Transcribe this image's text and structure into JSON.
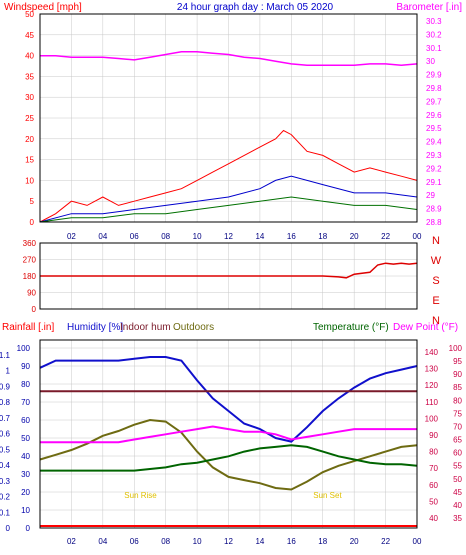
{
  "colors": {
    "background": "#ffffff",
    "frame": "#000000",
    "grid": "#c8c8c8",
    "wind_red": "#ff0000",
    "wind_blue": "#0000cc",
    "wind_green": "#007000",
    "barometer": "#ff00ff",
    "direction": "#dd0000",
    "humidity": "#1010cc",
    "indoor_hum": "#7a1a2a",
    "outdoor": "#6e6b12",
    "temperature": "#006400",
    "dewpoint": "#ff00ff",
    "rainfall": "#ff0000",
    "sun_label": "#e0c000",
    "left_axis2": "#0000aa",
    "right_axis2": "#cc0044"
  },
  "chart_data": [
    {
      "type": "line",
      "title": "24 hour graph day : March 05 2020",
      "left_axis_title": "Windspeed [mph]",
      "right_axis_title": "Barometer [.in]",
      "x_ticks": [
        "02",
        "04",
        "06",
        "08",
        "10",
        "12",
        "14",
        "16",
        "18",
        "20",
        "22",
        "00"
      ],
      "x_range": [
        0,
        24
      ],
      "left_ticks": [
        "0",
        "5",
        "10",
        "15",
        "20",
        "25",
        "30",
        "35",
        "40",
        "45",
        "50"
      ],
      "left_range": [
        0,
        50
      ],
      "right_ticks": [
        "28.8",
        "28.9",
        "29",
        "29.1",
        "29.2",
        "29.3",
        "29.4",
        "29.5",
        "29.6",
        "29.7",
        "29.8",
        "29.9",
        "30",
        "30.1",
        "30.2",
        "30.3"
      ],
      "right_range": [
        28.8,
        30.3
      ],
      "grid": true,
      "series": [
        {
          "id": "gust",
          "color_key": "wind_red",
          "axis": "left",
          "x": [
            0,
            1,
            2,
            3,
            4,
            5,
            6,
            7,
            8,
            9,
            10,
            11,
            12,
            13,
            14,
            15,
            15.5,
            16,
            17,
            18,
            19,
            20,
            21,
            22,
            23,
            24
          ],
          "y": [
            0,
            2,
            5,
            4,
            6,
            4,
            5,
            6,
            7,
            8,
            10,
            12,
            14,
            16,
            18,
            20,
            22,
            21,
            17,
            16,
            14,
            12,
            13,
            12,
            11,
            10
          ]
        },
        {
          "id": "average",
          "color_key": "wind_blue",
          "axis": "left",
          "x": [
            0,
            2,
            4,
            6,
            8,
            10,
            12,
            14,
            15,
            16,
            18,
            20,
            22,
            24
          ],
          "y": [
            0,
            2,
            2,
            3,
            4,
            5,
            6,
            8,
            10,
            11,
            9,
            7,
            7,
            6
          ]
        },
        {
          "id": "wind",
          "color_key": "wind_green",
          "axis": "left",
          "x": [
            0,
            2,
            4,
            6,
            8,
            10,
            12,
            14,
            16,
            18,
            20,
            22,
            24
          ],
          "y": [
            0,
            1,
            1,
            2,
            2,
            3,
            4,
            5,
            6,
            5,
            4,
            4,
            3
          ]
        },
        {
          "id": "barometer",
          "color_key": "barometer",
          "axis": "right",
          "x": [
            0,
            1,
            2,
            3,
            4,
            5,
            6,
            7,
            8,
            9,
            10,
            11,
            12,
            13,
            14,
            15,
            16,
            17,
            18,
            19,
            20,
            21,
            22,
            23,
            24
          ],
          "y": [
            30.04,
            30.04,
            30.03,
            30.03,
            30.03,
            30.02,
            30.01,
            30.03,
            30.05,
            30.07,
            30.07,
            30.06,
            30.05,
            30.03,
            30.02,
            30.0,
            29.98,
            29.97,
            29.97,
            29.97,
            29.97,
            29.98,
            29.98,
            29.97,
            29.98
          ]
        }
      ]
    },
    {
      "type": "scatter",
      "right_labels": [
        "N",
        "W",
        "S",
        "E",
        "N"
      ],
      "left_ticks": [
        "0",
        "90",
        "180",
        "270",
        "360"
      ],
      "left_range": [
        0,
        360
      ],
      "x_range": [
        0,
        24
      ],
      "series": [
        {
          "id": "direction",
          "color_key": "direction",
          "x": [
            0,
            2,
            4,
            6,
            8,
            10,
            12,
            12.5,
            13,
            14,
            15,
            16,
            17,
            18,
            19,
            19.5,
            20,
            21,
            21.5,
            22,
            22.5,
            23,
            23.5,
            24
          ],
          "y": [
            180,
            180,
            180,
            180,
            180,
            180,
            180,
            180,
            180,
            180,
            180,
            180,
            180,
            180,
            175,
            170,
            190,
            200,
            240,
            250,
            245,
            250,
            245,
            250
          ]
        }
      ]
    },
    {
      "type": "line",
      "header_labels": {
        "rainfall": "Rainfall [.in]",
        "humidity": "Humidity [%]",
        "indoor": "Indoor hum",
        "outdoor": "Outdoors",
        "temperature": "Temperature (°F)",
        "dewpoint": "Dew Point (°F)"
      },
      "x_ticks": [
        "02",
        "04",
        "06",
        "08",
        "10",
        "12",
        "14",
        "16",
        "18",
        "20",
        "22",
        "00"
      ],
      "x_range": [
        0,
        24
      ],
      "rain_ticks": [
        "0",
        "0.1",
        "0.2",
        "0.3",
        "0.4",
        "0.5",
        "0.6",
        "0.7",
        "0.8",
        "0.9",
        "1",
        "1.1"
      ],
      "rain_range": [
        0,
        1.2
      ],
      "humidity_ticks": [
        "0",
        "10",
        "20",
        "30",
        "40",
        "50",
        "60",
        "70",
        "80",
        "90",
        "100"
      ],
      "humidity_range": [
        0,
        100
      ],
      "temp_ticks": [
        "40",
        "50",
        "60",
        "70",
        "80",
        "90",
        "100",
        "110",
        "120",
        "130",
        "140"
      ],
      "temp_range": [
        40,
        145
      ],
      "dew_ticks": [
        "35",
        "40",
        "45",
        "50",
        "55",
        "60",
        "65",
        "70",
        "75",
        "80",
        "85",
        "90",
        "95",
        "100"
      ],
      "dew_range": [
        35,
        100
      ],
      "sunrise_label": "Sun Rise",
      "sunset_label": "Sun Set",
      "sunrise_hour": 6.4,
      "sunset_hour": 18.3,
      "series": [
        {
          "id": "humidity",
          "color_key": "humidity",
          "axis": "humidity",
          "x": [
            0,
            1,
            2,
            3,
            4,
            5,
            6,
            7,
            8,
            9,
            10,
            11,
            12,
            13,
            14,
            15,
            16,
            17,
            18,
            19,
            20,
            21,
            22,
            23,
            24
          ],
          "y": [
            89,
            93,
            93,
            93,
            93,
            93,
            94,
            95,
            95,
            93,
            82,
            72,
            65,
            58,
            55,
            50,
            48,
            56,
            65,
            72,
            78,
            83,
            86,
            88,
            90
          ]
        },
        {
          "id": "indoor",
          "color_key": "indoor_hum",
          "axis": "humidity",
          "x": [
            0,
            24
          ],
          "y": [
            76,
            76
          ]
        },
        {
          "id": "outdoor",
          "color_key": "outdoor",
          "axis": "temp",
          "x": [
            0,
            1,
            2,
            3,
            4,
            5,
            6,
            7,
            8,
            9,
            10,
            11,
            12,
            13,
            14,
            15,
            16,
            17,
            18,
            19,
            20,
            21,
            22,
            23,
            24
          ],
          "y": [
            77,
            80,
            83,
            87,
            92,
            95,
            99,
            102,
            101,
            94,
            82,
            72,
            66,
            64,
            62,
            59,
            58,
            63,
            69,
            73,
            76,
            79,
            82,
            85,
            86
          ]
        },
        {
          "id": "temperature",
          "color_key": "temperature",
          "axis": "temp",
          "x": [
            0,
            1,
            2,
            3,
            4,
            5,
            6,
            7,
            8,
            9,
            10,
            11,
            12,
            13,
            14,
            15,
            16,
            17,
            18,
            19,
            20,
            21,
            22,
            23,
            24
          ],
          "y": [
            70,
            70,
            70,
            70,
            70,
            70,
            70,
            71,
            72,
            74,
            75,
            77,
            79,
            82,
            84,
            85,
            86,
            85,
            82,
            79,
            77,
            75,
            74,
            74,
            73
          ]
        },
        {
          "id": "dewpoint",
          "color_key": "dewpoint",
          "axis": "dew",
          "x": [
            0,
            1,
            2,
            3,
            4,
            5,
            6,
            7,
            8,
            9,
            10,
            11,
            12,
            13,
            14,
            15,
            16,
            17,
            18,
            19,
            20,
            21,
            22,
            23,
            24
          ],
          "y": [
            64,
            64,
            64,
            64,
            64,
            64,
            65,
            66,
            67,
            68,
            69,
            70,
            69,
            68,
            68,
            67,
            65,
            66,
            67,
            68,
            69,
            69,
            69,
            69,
            69
          ]
        },
        {
          "id": "rainfall",
          "color_key": "rainfall",
          "axis": "rain",
          "x": [
            0,
            24
          ],
          "y": [
            0,
            0
          ]
        }
      ]
    }
  ]
}
